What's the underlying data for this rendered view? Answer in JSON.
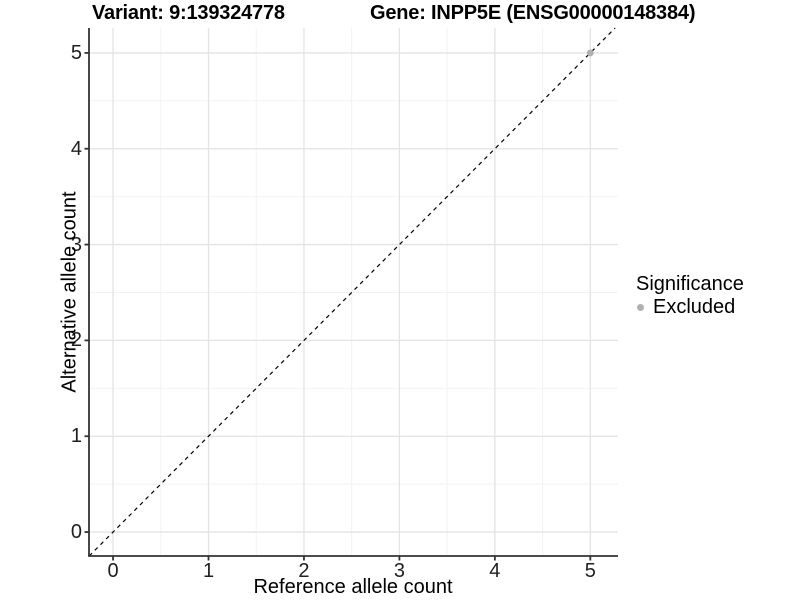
{
  "chart_data": {
    "type": "scatter",
    "title_left": "Variant: 9:139324778",
    "title_right": "Gene: INPP5E (ENSG00000148384)",
    "xlabel": "Reference allele count",
    "ylabel": "Alternative allele count",
    "x_ticks": [
      0,
      1,
      2,
      3,
      4,
      5
    ],
    "y_ticks": [
      0,
      1,
      2,
      3,
      4,
      5
    ],
    "minor_x": [
      0.5,
      1.5,
      2.5,
      3.5,
      4.5
    ],
    "minor_y": [
      0.5,
      1.5,
      2.5,
      3.5,
      4.5
    ],
    "xlim": [
      -0.252,
      5.29
    ],
    "ylim": [
      -0.25,
      5.26
    ],
    "grid": true,
    "reference_line": {
      "type": "identity-diagonal",
      "style": "dashed",
      "color": "#000000"
    },
    "series": [
      {
        "name": "Excluded",
        "color": "#b0b0b0",
        "points": [
          {
            "x": 5,
            "y": 5
          }
        ]
      }
    ],
    "legend": {
      "title": "Significance",
      "position": "right",
      "entries": [
        {
          "label": "Excluded",
          "color": "#b0b0b0"
        }
      ]
    },
    "colors": {
      "axis": "#333333",
      "grid_major": "#e3e3e3",
      "grid_minor": "#f1f1f1",
      "background": "#ffffff",
      "point": "#b0b0b0",
      "text": "#000000"
    }
  }
}
